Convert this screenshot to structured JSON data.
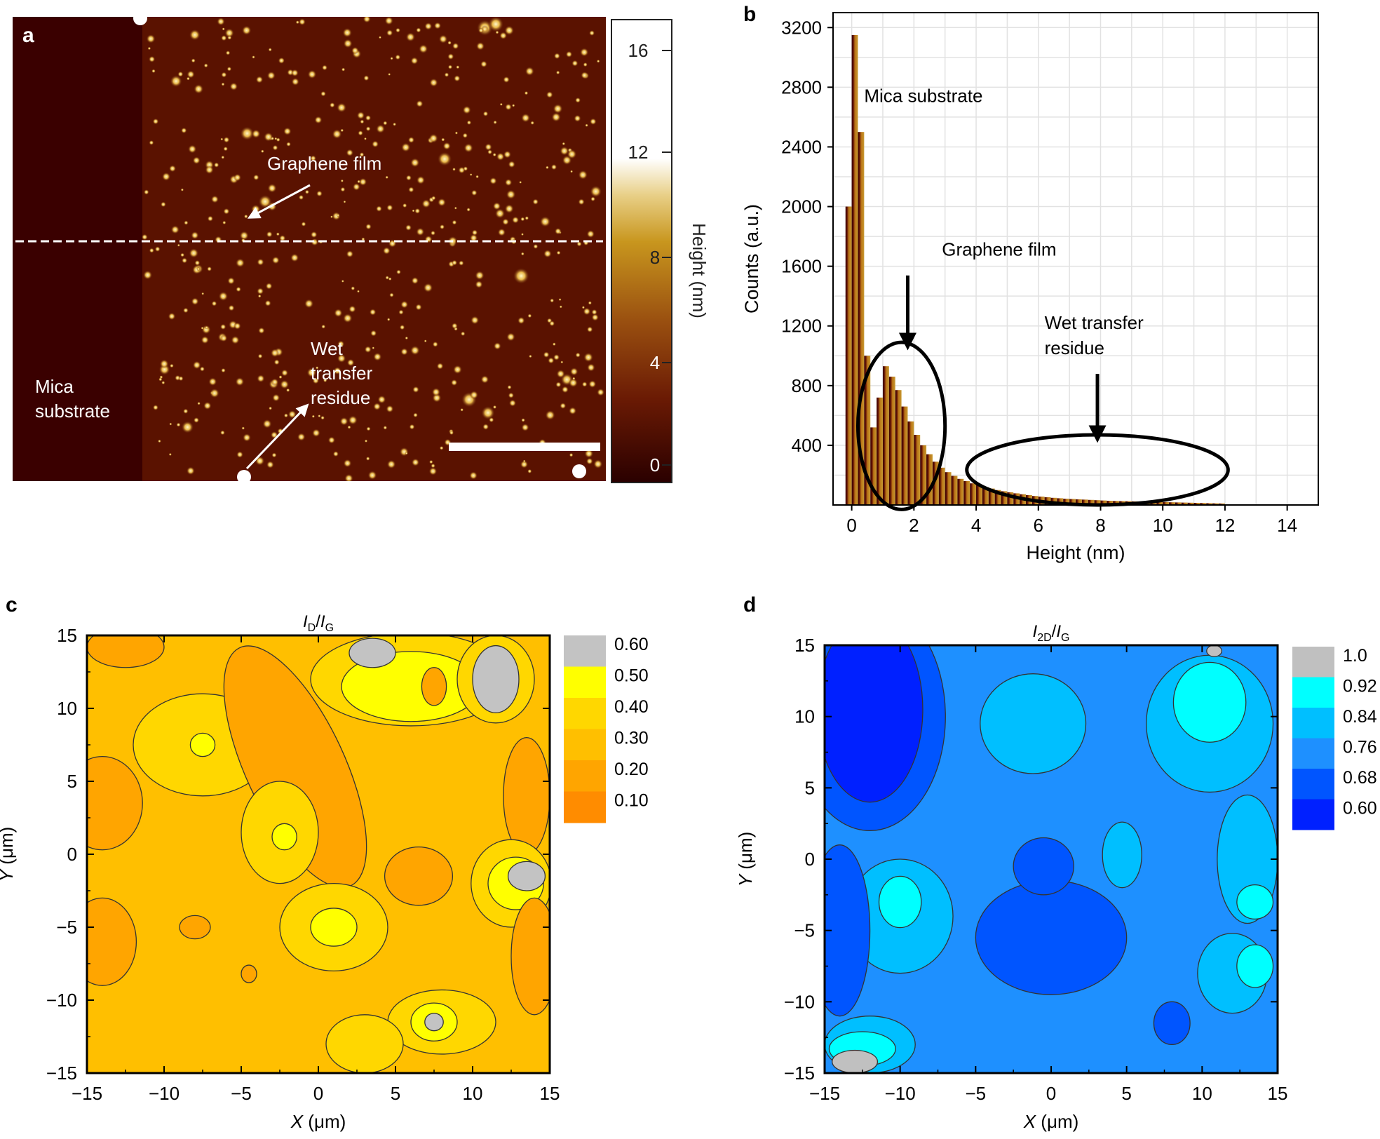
{
  "panels": {
    "a": {
      "label": "a",
      "colorbar_title": "Height (nm)",
      "colorbar_ticks": [
        "16",
        "12",
        "8",
        "4",
        "0"
      ],
      "annotations": {
        "graphene": "Graphene film",
        "wet": [
          "Wet",
          "transfer",
          "residue"
        ],
        "mica": [
          "Mica",
          "substrate"
        ]
      }
    },
    "b": {
      "label": "b"
    },
    "c": {
      "label": "c"
    },
    "d": {
      "label": "d"
    }
  },
  "chart_data": [
    {
      "panel": "b",
      "type": "bar",
      "xlabel": "Height (nm)",
      "ylabel": "Counts (a.u.)",
      "xlim": [
        -0.6,
        15
      ],
      "ylim": [
        0,
        3300
      ],
      "x_ticks": [
        0,
        2,
        4,
        6,
        8,
        10,
        12,
        14
      ],
      "y_ticks": [
        400,
        800,
        1200,
        1600,
        2000,
        2400,
        2800,
        3200
      ],
      "grid": true,
      "bin_width": 0.2,
      "x": [
        -0.2,
        0,
        0.2,
        0.4,
        0.6,
        0.8,
        1,
        1.2,
        1.4,
        1.6,
        1.8,
        2,
        2.2,
        2.4,
        2.6,
        2.8,
        3,
        3.2,
        3.4,
        3.6,
        3.8,
        4,
        4.2,
        4.4,
        4.6,
        4.8,
        5,
        5.2,
        5.4,
        5.6,
        5.8,
        6,
        6.2,
        6.4,
        6.6,
        6.8,
        7,
        7.2,
        7.4,
        7.6,
        7.8,
        8,
        8.2,
        8.4,
        8.6,
        8.8,
        9,
        9.2,
        9.4,
        9.6,
        9.8,
        10,
        10.2,
        10.4,
        10.6,
        10.8,
        11,
        11.2,
        11.4,
        11.6,
        11.8
      ],
      "values": [
        2000,
        3150,
        2500,
        1000,
        520,
        720,
        930,
        860,
        770,
        660,
        560,
        470,
        400,
        340,
        290,
        250,
        220,
        195,
        175,
        160,
        145,
        135,
        120,
        110,
        100,
        92,
        85,
        78,
        72,
        66,
        60,
        56,
        52,
        48,
        45,
        42,
        40,
        38,
        36,
        34,
        32,
        30,
        28,
        27,
        26,
        25,
        24,
        23,
        22,
        21,
        20,
        19,
        18,
        17,
        16,
        15,
        14,
        13,
        12,
        11,
        10
      ],
      "annotations": [
        {
          "text": "Mica substrate",
          "x": 0.4,
          "y": 2700
        },
        {
          "text": "Graphene film",
          "x": 2.9,
          "y": 1670,
          "arrow_to": [
            1.8,
            1060
          ]
        },
        {
          "text": "Wet transfer",
          "x": 6.2,
          "y": 1180
        },
        {
          "text": "residue",
          "x": 6.2,
          "y": 1010,
          "arrow_to": [
            7.9,
            440
          ]
        }
      ],
      "ellipses": [
        {
          "cx": 1.6,
          "cy": 530,
          "rx": 1.4,
          "ry": 560
        },
        {
          "cx": 7.9,
          "cy": 235,
          "rx": 4.2,
          "ry": 235
        }
      ]
    },
    {
      "panel": "c",
      "type": "heatmap",
      "title": [
        "I",
        "D",
        "/",
        "I",
        "G"
      ],
      "xlabel": [
        "X",
        " (μm)"
      ],
      "ylabel": [
        "Y",
        " (μm)"
      ],
      "xlim": [
        -15,
        15
      ],
      "ylim": [
        -15,
        15
      ],
      "x_ticks": [
        "−15",
        "−10",
        "−5",
        "0",
        "5",
        "10",
        "15"
      ],
      "y_ticks": [
        "15",
        "10",
        "5",
        "0",
        "−5",
        "−10",
        "−15"
      ],
      "levels": [
        "0.60",
        "0.50",
        "0.40",
        "0.30",
        "0.20",
        "0.10"
      ],
      "colors": [
        "#c3c3c3",
        "#ffff00",
        "#ffd700",
        "#ffbf00",
        "#ffa500",
        "#ff8c00"
      ],
      "background_level": 3,
      "regions": [
        {
          "level": 4,
          "c": [
            -12.5,
            14.2
          ],
          "r": [
            2.5,
            1.4
          ]
        },
        {
          "level": 2,
          "c": [
            -7.5,
            7.5
          ],
          "r": [
            4.5,
            3.5
          ]
        },
        {
          "level": 1,
          "c": [
            -7.5,
            7.5
          ],
          "r": [
            0.8,
            0.8
          ]
        },
        {
          "level": 4,
          "c": [
            -14,
            3.5
          ],
          "r": [
            2.6,
            3.2
          ]
        },
        {
          "level": 4,
          "c": [
            -1.5,
            6
          ],
          "r": [
            3.2,
            9
          ],
          "rot": -25
        },
        {
          "level": 2,
          "c": [
            -2.5,
            1.5
          ],
          "r": [
            2.5,
            3.5
          ]
        },
        {
          "level": 1,
          "c": [
            -2.2,
            1.2
          ],
          "r": [
            0.8,
            0.9
          ]
        },
        {
          "level": 2,
          "c": [
            6,
            12
          ],
          "r": [
            6.5,
            3.2
          ]
        },
        {
          "level": 1,
          "c": [
            6,
            11.5
          ],
          "r": [
            4.5,
            2.4
          ]
        },
        {
          "level": 0,
          "c": [
            3.5,
            13.8
          ],
          "r": [
            1.5,
            1
          ]
        },
        {
          "level": 4,
          "c": [
            7.5,
            11.5
          ],
          "r": [
            0.8,
            1.3
          ]
        },
        {
          "level": 2,
          "c": [
            11.5,
            12
          ],
          "r": [
            2.5,
            3
          ]
        },
        {
          "level": 0,
          "c": [
            11.5,
            12
          ],
          "r": [
            1.5,
            2.3
          ]
        },
        {
          "level": 4,
          "c": [
            13.5,
            4
          ],
          "r": [
            1.5,
            4
          ]
        },
        {
          "level": 4,
          "c": [
            6.5,
            -1.5
          ],
          "r": [
            2.2,
            2
          ]
        },
        {
          "level": 2,
          "c": [
            12.5,
            -2
          ],
          "r": [
            2.6,
            3
          ]
        },
        {
          "level": 1,
          "c": [
            12.8,
            -2
          ],
          "r": [
            1.8,
            1.8
          ]
        },
        {
          "level": 0,
          "c": [
            13.5,
            -1.5
          ],
          "r": [
            1.2,
            1
          ]
        },
        {
          "level": 2,
          "c": [
            1,
            -5
          ],
          "r": [
            3.5,
            3
          ]
        },
        {
          "level": 1,
          "c": [
            1,
            -5
          ],
          "r": [
            1.5,
            1.3
          ]
        },
        {
          "level": 4,
          "c": [
            -8,
            -5
          ],
          "r": [
            1,
            0.8
          ]
        },
        {
          "level": 4,
          "c": [
            -14,
            -6
          ],
          "r": [
            2.2,
            3
          ]
        },
        {
          "level": 4,
          "c": [
            14,
            -7
          ],
          "r": [
            1.5,
            4
          ]
        },
        {
          "level": 2,
          "c": [
            8,
            -11.5
          ],
          "r": [
            3.5,
            2.2
          ]
        },
        {
          "level": 1,
          "c": [
            7.5,
            -11.5
          ],
          "r": [
            1.5,
            1.3
          ]
        },
        {
          "level": 0,
          "c": [
            7.5,
            -11.5
          ],
          "r": [
            0.6,
            0.6
          ]
        },
        {
          "level": 2,
          "c": [
            3,
            -13
          ],
          "r": [
            2.5,
            2
          ]
        },
        {
          "level": 4,
          "c": [
            -4.5,
            -8.2
          ],
          "r": [
            0.5,
            0.6
          ]
        }
      ]
    },
    {
      "panel": "d",
      "type": "heatmap",
      "title": [
        "I",
        "2D",
        "/",
        "I",
        "G"
      ],
      "xlabel": [
        "X",
        " (μm)"
      ],
      "ylabel": [
        "Y",
        " (μm)"
      ],
      "xlim": [
        -15,
        15
      ],
      "ylim": [
        -15,
        15
      ],
      "x_ticks": [
        "−15",
        "−10",
        "−5",
        "0",
        "5",
        "10",
        "15"
      ],
      "y_ticks": [
        "15",
        "10",
        "5",
        "0",
        "−5",
        "−10",
        "−15"
      ],
      "levels": [
        "1.0",
        "0.92",
        "0.84",
        "0.76",
        "0.68",
        "0.60"
      ],
      "colors": [
        "#c0c0c0",
        "#00ffff",
        "#00bfff",
        "#1e90ff",
        "#0055ff",
        "#0020ff"
      ],
      "background_level": 3,
      "regions": [
        {
          "level": 4,
          "c": [
            -12,
            10
          ],
          "r": [
            5,
            8
          ]
        },
        {
          "level": 5,
          "c": [
            -12,
            10.5
          ],
          "r": [
            3.5,
            6.5
          ]
        },
        {
          "level": 2,
          "c": [
            -10,
            -4
          ],
          "r": [
            3.5,
            4
          ]
        },
        {
          "level": 1,
          "c": [
            -10,
            -3
          ],
          "r": [
            1.4,
            1.8
          ]
        },
        {
          "level": 4,
          "c": [
            -14,
            -5
          ],
          "r": [
            2,
            6
          ]
        },
        {
          "level": 2,
          "c": [
            -12,
            -13
          ],
          "r": [
            3,
            2
          ]
        },
        {
          "level": 1,
          "c": [
            -12.5,
            -13.3
          ],
          "r": [
            2.2,
            1.2
          ]
        },
        {
          "level": 0,
          "c": [
            -13,
            -14.2
          ],
          "r": [
            1.5,
            0.8
          ]
        },
        {
          "level": 4,
          "c": [
            0,
            -5.5
          ],
          "r": [
            5,
            4
          ]
        },
        {
          "level": 4,
          "c": [
            8,
            -11.5
          ],
          "r": [
            1.2,
            1.5
          ]
        },
        {
          "level": 4,
          "c": [
            -0.5,
            -0.5
          ],
          "r": [
            2,
            2
          ]
        },
        {
          "level": 2,
          "c": [
            4.7,
            0.3
          ],
          "r": [
            1.3,
            2.3
          ]
        },
        {
          "level": 2,
          "c": [
            10.5,
            9.5
          ],
          "r": [
            4.2,
            4.8
          ]
        },
        {
          "level": 1,
          "c": [
            10.5,
            11
          ],
          "r": [
            2.4,
            2.8
          ]
        },
        {
          "level": 0,
          "c": [
            10.8,
            14.6
          ],
          "r": [
            0.5,
            0.4
          ]
        },
        {
          "level": 2,
          "c": [
            -1.2,
            9.5
          ],
          "r": [
            3.5,
            3.5
          ]
        },
        {
          "level": 2,
          "c": [
            13,
            0
          ],
          "r": [
            2,
            4.5
          ]
        },
        {
          "level": 1,
          "c": [
            13.5,
            -3
          ],
          "r": [
            1.2,
            1.2
          ]
        },
        {
          "level": 2,
          "c": [
            12,
            -8
          ],
          "r": [
            2.3,
            2.8
          ]
        },
        {
          "level": 1,
          "c": [
            13.5,
            -7.5
          ],
          "r": [
            1.2,
            1.5
          ]
        }
      ]
    }
  ]
}
